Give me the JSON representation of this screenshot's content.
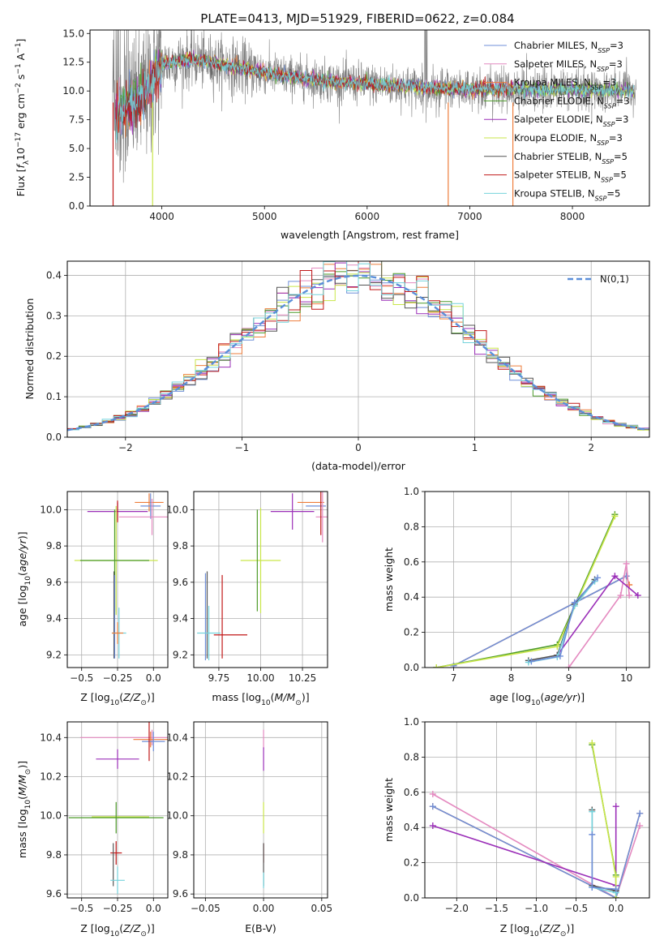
{
  "colors": {
    "chabrier_miles": "#6f8fd8",
    "salpeter_miles": "#e48ac0",
    "kroupa_miles": "#ee7d3b",
    "chabrier_elodie": "#4d9b2a",
    "salpeter_elodie": "#9b2fb8",
    "kroupa_elodie": "#c9e64a",
    "chabrier_stelib": "#555555",
    "salpeter_stelib": "#c01818",
    "kroupa_stelib": "#74d3dc",
    "gauss": "#5b8fd9",
    "grid": "#b0b0b0",
    "spectrum": "#808080"
  },
  "chart_data": [
    {
      "id": "spectrum",
      "type": "line",
      "title": "PLATE=0413, MJD=51929, FIBERID=0622, z=0.084",
      "xlabel": "wavelength [Angstrom, rest frame]",
      "ylabel": "Flux [fλ 10⁻¹⁷ erg cm⁻² s⁻¹ A⁻¹]",
      "xlim": [
        3300,
        8750
      ],
      "ylim": [
        0,
        15.3
      ],
      "xticks": [
        4000,
        5000,
        6000,
        7000,
        8000
      ],
      "yticks": [
        0.0,
        2.5,
        5.0,
        7.5,
        10.0,
        12.5,
        15.0
      ],
      "ytick_labels": [
        "0.0",
        "2.5",
        "5.0",
        "7.5",
        "10.0",
        "12.5",
        "15.0"
      ],
      "legend": [
        {
          "key": "chabrier_miles",
          "text": "Chabrier MILES, N",
          "sub": "SSP",
          "tail": "=3"
        },
        {
          "key": "salpeter_miles",
          "text": "Salpeter MILES, N",
          "sub": "SSP",
          "tail": "=3"
        },
        {
          "key": "kroupa_miles",
          "text": "Kroupa MILES, N",
          "sub": "SSP",
          "tail": "=3"
        },
        {
          "key": "chabrier_elodie",
          "text": "Chabrier ELODIE, N",
          "sub": "SSP",
          "tail": "=3"
        },
        {
          "key": "salpeter_elodie",
          "text": "Salpeter ELODIE, N",
          "sub": "SSP",
          "tail": "=3"
        },
        {
          "key": "kroupa_elodie",
          "text": "Kroupa ELODIE, N",
          "sub": "SSP",
          "tail": "=3"
        },
        {
          "key": "chabrier_stelib",
          "text": "Chabrier STELIB, N",
          "sub": "SSP",
          "tail": "=5"
        },
        {
          "key": "salpeter_stelib",
          "text": "Salpeter STELIB, N",
          "sub": "SSP",
          "tail": "=5"
        },
        {
          "key": "kroupa_stelib",
          "text": "Kroupa STELIB, N",
          "sub": "SSP",
          "tail": "=5"
        }
      ],
      "model_trend": [
        [
          3550,
          8.0
        ],
        [
          3800,
          9.3
        ],
        [
          4000,
          12.3
        ],
        [
          4300,
          12.8
        ],
        [
          4700,
          12.1
        ],
        [
          5200,
          11.3
        ],
        [
          5700,
          10.8
        ],
        [
          6200,
          10.5
        ],
        [
          6700,
          10.2
        ],
        [
          7200,
          10.2
        ],
        [
          7700,
          10.1
        ],
        [
          8200,
          10.1
        ],
        [
          8600,
          10.0
        ]
      ]
    },
    {
      "id": "residuals",
      "type": "step",
      "xlabel": "(data-model)/error",
      "ylabel": "Normed distribution",
      "xlim": [
        -2.5,
        2.5
      ],
      "ylim": [
        0,
        0.435
      ],
      "xticks": [
        -2,
        -1,
        0,
        1,
        2
      ],
      "xtick_labels": [
        "−2",
        "−1",
        "0",
        "1",
        "2"
      ],
      "yticks": [
        0.0,
        0.1,
        0.2,
        0.3,
        0.4
      ],
      "ytick_labels": [
        "0.0",
        "0.1",
        "0.2",
        "0.3",
        "0.4"
      ],
      "legend": "N(0,1)",
      "bin_width": 0.1
    },
    {
      "id": "age_vs_Z",
      "type": "errorbar",
      "xlabel": "Z [log10(Z/Z☉)]",
      "ylabel": "age [log10(age/yr)]",
      "xlim": [
        -0.6,
        0.1
      ],
      "ylim": [
        9.13,
        10.1
      ],
      "xticks": [
        -0.5,
        -0.25,
        0.0
      ],
      "xtick_labels": [
        "−0.5",
        "−0.25",
        "0.0"
      ],
      "yticks": [
        9.2,
        9.4,
        9.6,
        9.8,
        10.0
      ],
      "ytick_labels": [
        "9.2",
        "9.4",
        "9.6",
        "9.8",
        "10.0"
      ],
      "points": [
        {
          "key": "kroupa_miles",
          "x": -0.03,
          "y": 10.04,
          "xe": 0.1,
          "ye": 0.05
        },
        {
          "key": "chabrier_miles",
          "x": -0.02,
          "y": 10.02,
          "xe": 0.07,
          "ye": 0.07
        },
        {
          "key": "salpeter_miles",
          "x": -0.01,
          "y": 9.96,
          "xe": 0.23,
          "ye": 0.1
        },
        {
          "key": "salpeter_elodie",
          "x": -0.25,
          "y": 9.99,
          "xe": 0.21,
          "ye": 0.05
        },
        {
          "key": "salpeter_stelib",
          "x": -0.25,
          "y": 9.99,
          "xe": 0.0,
          "ye": 0.06
        },
        {
          "key": "kroupa_elodie",
          "x": -0.26,
          "y": 9.72,
          "xe": 0.29,
          "ye": 0.3
        },
        {
          "key": "chabrier_elodie",
          "x": -0.27,
          "y": 9.72,
          "xe": 0.24,
          "ye": 0.28
        },
        {
          "key": "chabrier_stelib",
          "x": -0.275,
          "y": 9.42,
          "xe": 0.0,
          "ye": 0.24
        },
        {
          "key": "chabrier_miles",
          "x": -0.27,
          "y": 9.41,
          "xe": 0.0,
          "ye": 0.23
        },
        {
          "key": "kroupa_stelib",
          "x": -0.24,
          "y": 9.32,
          "xe": 0.05,
          "ye": 0.14
        },
        {
          "key": "kroupa_miles",
          "x": -0.25,
          "y": 9.32,
          "xe": 0.04,
          "ye": 0.06
        }
      ]
    },
    {
      "id": "age_vs_mass",
      "type": "errorbar",
      "xlabel": "mass [log10(M/M☉)]",
      "ylabel": "",
      "xlim": [
        9.6,
        10.4
      ],
      "ylim": [
        9.13,
        10.1
      ],
      "xticks": [
        9.75,
        10.0,
        10.25
      ],
      "xtick_labels": [
        "9.75",
        "10.00",
        "10.25"
      ],
      "yticks": [
        9.2,
        9.4,
        9.6,
        9.8,
        10.0
      ],
      "ytick_labels": [
        "9.2",
        "9.4",
        "9.6",
        "9.8",
        "10.0"
      ],
      "points": [
        {
          "key": "kroupa_miles",
          "x": 10.3,
          "y": 10.04,
          "xe": 0.08,
          "ye": 0.0
        },
        {
          "key": "chabrier_miles",
          "x": 10.33,
          "y": 10.02,
          "xe": 0.06,
          "ye": 0.0
        },
        {
          "key": "salpeter_miles",
          "x": 10.37,
          "y": 9.96,
          "xe": 0.04,
          "ye": 0.14
        },
        {
          "key": "salpeter_elodie",
          "x": 10.19,
          "y": 9.99,
          "xe": 0.13,
          "ye": 0.1
        },
        {
          "key": "salpeter_stelib",
          "x": 10.36,
          "y": 9.99,
          "xe": 0.0,
          "ye": 0.13
        },
        {
          "key": "kroupa_elodie",
          "x": 10.0,
          "y": 9.72,
          "xe": 0.12,
          "ye": 0.29
        },
        {
          "key": "chabrier_elodie",
          "x": 9.98,
          "y": 9.72,
          "xe": 0.0,
          "ye": 0.28
        },
        {
          "key": "chabrier_stelib",
          "x": 9.68,
          "y": 9.42,
          "xe": 0.0,
          "ye": 0.24
        },
        {
          "key": "chabrier_miles",
          "x": 9.67,
          "y": 9.41,
          "xe": 0.0,
          "ye": 0.24
        },
        {
          "key": "kroupa_stelib",
          "x": 9.69,
          "y": 9.32,
          "xe": 0.07,
          "ye": 0.15
        },
        {
          "key": "salpeter_stelib",
          "x": 9.77,
          "y": 9.32,
          "xe": 0.0,
          "ye": 0.0
        },
        {
          "key": "salpeter_stelib",
          "x": 9.82,
          "y": 9.31,
          "xe": 0.1,
          "ye": 0.0
        },
        {
          "key": "salpeter_stelib",
          "x": 9.77,
          "y": 9.41,
          "xe": 0.0,
          "ye": 0.23
        }
      ]
    },
    {
      "id": "weight_vs_age",
      "type": "line",
      "xlabel": "age [log10(age/yr)]",
      "ylabel": "mass weight",
      "xlim": [
        6.5,
        10.4
      ],
      "ylim": [
        0,
        1.0
      ],
      "xticks": [
        7,
        8,
        9,
        10
      ],
      "yticks": [
        0.0,
        0.2,
        0.4,
        0.6,
        0.8,
        1.0
      ],
      "ytick_labels": [
        "0.0",
        "0.2",
        "0.4",
        "0.6",
        "0.8",
        "1.0"
      ],
      "series": [
        {
          "key": "kroupa_miles",
          "x": [
            7.0,
            10.0,
            10.05
          ],
          "y": [
            0.01,
            0.52,
            0.47
          ]
        },
        {
          "key": "chabrier_miles",
          "x": [
            7.0,
            10.0
          ],
          "y": [
            0.01,
            0.52
          ]
        },
        {
          "key": "salpeter_miles",
          "x": [
            9.0,
            9.9,
            10.0,
            10.05
          ],
          "y": [
            0.0,
            0.41,
            0.59,
            0.41
          ]
        },
        {
          "key": "salpeter_elodie",
          "x": [
            8.8,
            9.8,
            10.2
          ],
          "y": [
            0.07,
            0.52,
            0.41
          ]
        },
        {
          "key": "chabrier_elodie",
          "x": [
            6.7,
            8.8,
            9.8
          ],
          "y": [
            0.0,
            0.13,
            0.87
          ]
        },
        {
          "key": "kroupa_elodie",
          "x": [
            6.7,
            8.8,
            9.8
          ],
          "y": [
            0.0,
            0.12,
            0.86
          ]
        },
        {
          "key": "chabrier_stelib",
          "x": [
            8.3,
            8.8,
            9.1,
            9.45
          ],
          "y": [
            0.04,
            0.07,
            0.36,
            0.5
          ]
        },
        {
          "key": "kroupa_stelib",
          "x": [
            8.3,
            8.8,
            9.1,
            9.45
          ],
          "y": [
            0.03,
            0.06,
            0.35,
            0.49
          ]
        },
        {
          "key": "chabrier_miles",
          "x": [
            8.35,
            8.85,
            9.1,
            9.5
          ],
          "y": [
            0.035,
            0.065,
            0.37,
            0.51
          ]
        }
      ]
    },
    {
      "id": "mass_vs_Z",
      "type": "errorbar",
      "xlabel": "Z [log10(Z/Z☉)]",
      "ylabel": "mass [log10(M/M☉)]",
      "xlim": [
        -0.6,
        0.1
      ],
      "ylim": [
        9.58,
        10.48
      ],
      "xticks": [
        -0.5,
        -0.25,
        0.0
      ],
      "xtick_labels": [
        "−0.5",
        "−0.25",
        "0.0"
      ],
      "yticks": [
        9.6,
        9.8,
        10.0,
        10.2,
        10.4
      ],
      "ytick_labels": [
        "9.6",
        "9.8",
        "10.0",
        "10.2",
        "10.4"
      ],
      "points": [
        {
          "key": "salpeter_miles",
          "x": -0.01,
          "y": 10.4,
          "xe": 0.5,
          "ye": 0.04
        },
        {
          "key": "kroupa_miles",
          "x": -0.02,
          "y": 10.39,
          "xe": 0.12,
          "ye": 0.04
        },
        {
          "key": "chabrier_miles",
          "x": 0.0,
          "y": 10.38,
          "xe": 0.08,
          "ye": 0.05
        },
        {
          "key": "salpeter_stelib",
          "x": -0.03,
          "y": 10.38,
          "xe": 0.0,
          "ye": 0.1
        },
        {
          "key": "salpeter_elodie",
          "x": -0.25,
          "y": 10.29,
          "xe": 0.15,
          "ye": 0.05
        },
        {
          "key": "kroupa_elodie",
          "x": -0.23,
          "y": 9.995,
          "xe": 0.2,
          "ye": 0.0
        },
        {
          "key": "chabrier_elodie",
          "x": -0.26,
          "y": 9.99,
          "xe": 0.33,
          "ye": 0.08
        },
        {
          "key": "salpeter_stelib",
          "x": -0.26,
          "y": 9.81,
          "xe": 0.04,
          "ye": 0.06
        },
        {
          "key": "chabrier_stelib",
          "x": -0.28,
          "y": 9.75,
          "xe": 0.0,
          "ye": 0.11
        },
        {
          "key": "kroupa_stelib",
          "x": -0.25,
          "y": 9.67,
          "xe": 0.05,
          "ye": 0.07
        }
      ]
    },
    {
      "id": "mass_vs_ebv",
      "type": "errorbar",
      "xlabel": "E(B-V)",
      "ylabel": "",
      "xlim": [
        -0.06,
        0.055
      ],
      "ylim": [
        9.58,
        10.48
      ],
      "xticks": [
        -0.05,
        0.0,
        0.05
      ],
      "xtick_labels": [
        "−0.05",
        "0.00",
        "0.05"
      ],
      "yticks": [
        9.6,
        9.8,
        10.0,
        10.2,
        10.4
      ],
      "ytick_labels": [
        "9.6",
        "9.8",
        "10.0",
        "10.2",
        "10.4"
      ],
      "points": [
        {
          "key": "salpeter_miles",
          "x": 0.0,
          "y": 10.39,
          "xe": 0.0,
          "ye": 0.05
        },
        {
          "key": "salpeter_elodie",
          "x": 0.0,
          "y": 10.29,
          "xe": 0.0,
          "ye": 0.06
        },
        {
          "key": "kroupa_elodie",
          "x": 0.0,
          "y": 9.99,
          "xe": 0.0,
          "ye": 0.08
        },
        {
          "key": "salpeter_stelib",
          "x": 0.0,
          "y": 9.81,
          "xe": 0.0,
          "ye": 0.05
        },
        {
          "key": "chabrier_stelib",
          "x": 0.0,
          "y": 9.75,
          "xe": 0.0,
          "ye": 0.11
        },
        {
          "key": "kroupa_stelib",
          "x": 0.0,
          "y": 9.67,
          "xe": 0.0,
          "ye": 0.04
        }
      ]
    },
    {
      "id": "weight_vs_Z",
      "type": "line",
      "xlabel": "Z [log10(Z/Z☉)]",
      "ylabel": "mass weight",
      "xlim": [
        -2.4,
        0.42
      ],
      "ylim": [
        0,
        1.0
      ],
      "xticks": [
        -2.0,
        -1.5,
        -1.0,
        -0.5,
        0.0
      ],
      "xtick_labels": [
        "−2.0",
        "−1.5",
        "−1.0",
        "−0.5",
        "0.0"
      ],
      "yticks": [
        0.0,
        0.2,
        0.4,
        0.6,
        0.8,
        1.0
      ],
      "ytick_labels": [
        "0.0",
        "0.2",
        "0.4",
        "0.6",
        "0.8",
        "1.0"
      ],
      "series": [
        {
          "key": "salpeter_miles",
          "x": [
            -2.3,
            0.0,
            0.3
          ],
          "y": [
            0.59,
            0.0,
            0.41
          ]
        },
        {
          "key": "kroupa_miles",
          "x": [
            -2.3,
            0.0,
            0.3
          ],
          "y": [
            0.52,
            0.0,
            0.48
          ]
        },
        {
          "key": "chabrier_miles",
          "x": [
            -2.3,
            0.0,
            0.3
          ],
          "y": [
            0.52,
            0.0,
            0.48
          ]
        },
        {
          "key": "salpeter_elodie",
          "x": [
            -2.3,
            0.0,
            0.0
          ],
          "y": [
            0.41,
            0.07,
            0.52
          ]
        },
        {
          "key": "chabrier_elodie",
          "x": [
            -0.3,
            0.0,
            0.0
          ],
          "y": [
            0.87,
            0.13,
            0.0
          ]
        },
        {
          "key": "kroupa_elodie",
          "x": [
            -0.3,
            0.0,
            0.0
          ],
          "y": [
            0.88,
            0.12,
            0.0
          ]
        },
        {
          "key": "chabrier_stelib",
          "x": [
            -0.3,
            -0.3,
            0.0
          ],
          "y": [
            0.5,
            0.07,
            0.04
          ]
        },
        {
          "key": "kroupa_stelib",
          "x": [
            -0.3,
            -0.3,
            0.0
          ],
          "y": [
            0.49,
            0.06,
            0.03
          ]
        },
        {
          "key": "chabrier_miles",
          "x": [
            -0.3,
            -0.3,
            0.0
          ],
          "y": [
            0.36,
            0.06,
            0.05
          ]
        }
      ]
    }
  ]
}
